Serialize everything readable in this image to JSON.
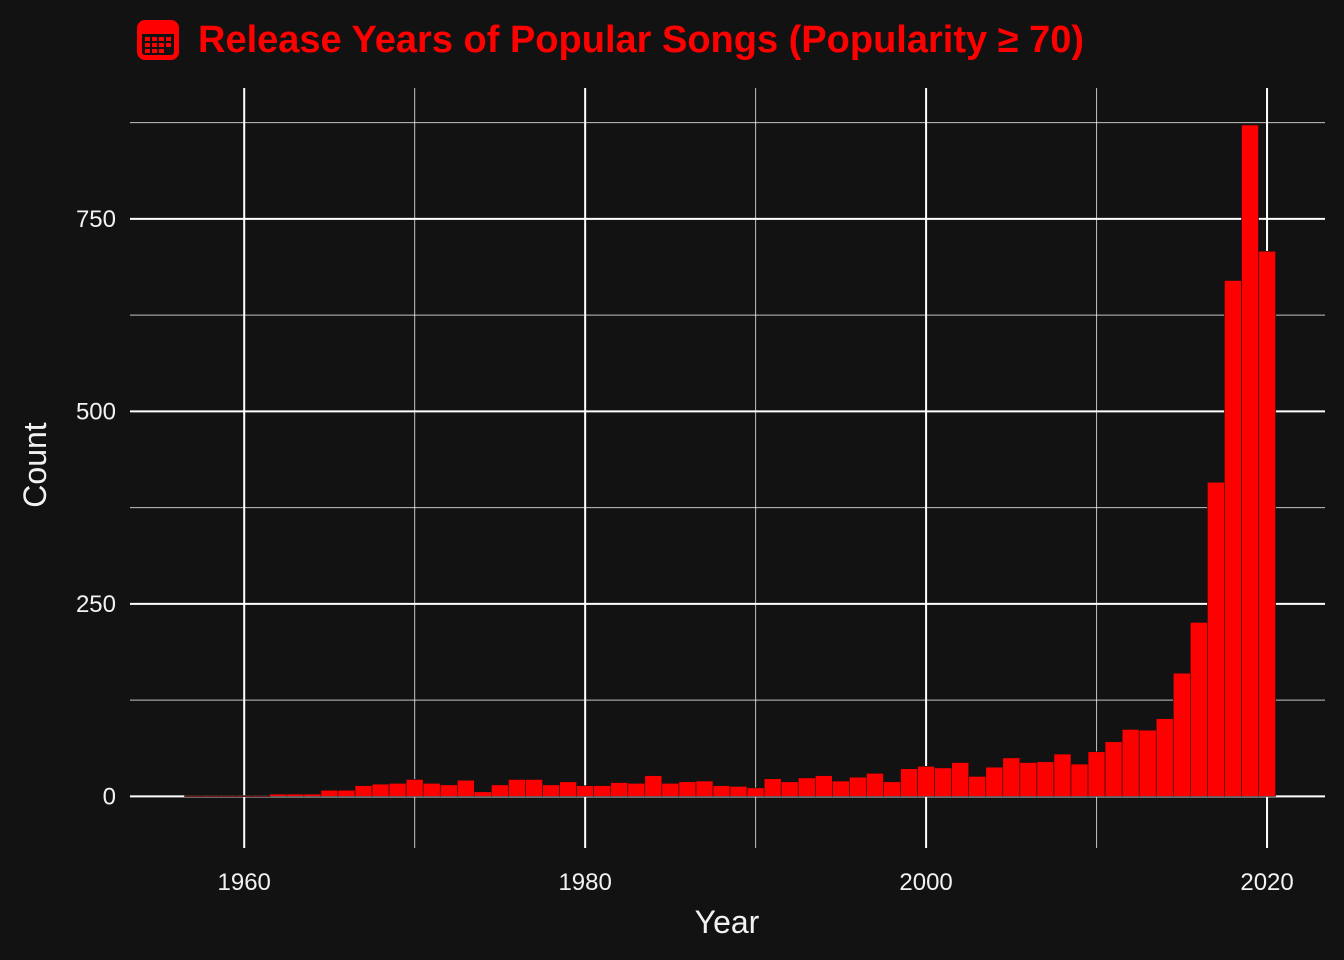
{
  "colors": {
    "background": "#121212",
    "bar": "#ff0000",
    "title": "#ff0000",
    "grid": "#ffffff",
    "text": "#f2f2f2"
  },
  "chart_data": {
    "type": "bar",
    "title": "Release Years of Popular Songs (Popularity ≥ 70)",
    "title_icon": "calendar-icon",
    "xlabel": "Year",
    "ylabel": "Count",
    "xlim": [
      1953.3,
      2023.4
    ],
    "ylim": [
      -67,
      920
    ],
    "x_ticks": [
      1960,
      1980,
      2000,
      2020
    ],
    "x_tick_labels": [
      "1960",
      "1980",
      "2000",
      "2020"
    ],
    "y_ticks": [
      0,
      250,
      500,
      750
    ],
    "y_tick_labels": [
      "0",
      "250",
      "500",
      "750"
    ],
    "grid": true,
    "legend": "none",
    "bin_width": 1,
    "x": [
      1957,
      1958,
      1959,
      1960,
      1961,
      1962,
      1963,
      1964,
      1965,
      1966,
      1967,
      1968,
      1969,
      1970,
      1971,
      1972,
      1973,
      1974,
      1975,
      1976,
      1977,
      1978,
      1979,
      1980,
      1981,
      1982,
      1983,
      1984,
      1985,
      1986,
      1987,
      1988,
      1989,
      1990,
      1991,
      1992,
      1993,
      1994,
      1995,
      1996,
      1997,
      1998,
      1999,
      2000,
      2001,
      2002,
      2003,
      2004,
      2005,
      2006,
      2007,
      2008,
      2009,
      2010,
      2011,
      2012,
      2013,
      2014,
      2015,
      2016,
      2017,
      2018,
      2019,
      2020
    ],
    "values": [
      1,
      1,
      1,
      1,
      1,
      3,
      3,
      3,
      8,
      8,
      14,
      16,
      17,
      22,
      17,
      15,
      21,
      6,
      15,
      22,
      22,
      15,
      19,
      14,
      14,
      18,
      17,
      27,
      17,
      19,
      20,
      14,
      13,
      11,
      23,
      19,
      24,
      27,
      20,
      25,
      30,
      19,
      36,
      39,
      37,
      44,
      26,
      38,
      50,
      44,
      45,
      55,
      42,
      58,
      71,
      87,
      86,
      101,
      160,
      226,
      408,
      670,
      872,
      708
    ]
  }
}
